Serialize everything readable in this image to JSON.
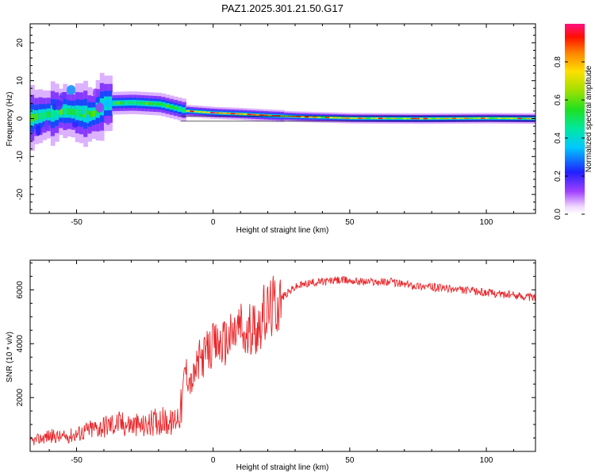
{
  "chart_data": [
    {
      "type": "heatmap",
      "title": "PAZ1.2025.301.21.50.G17",
      "xlabel": "Height of straight line (km)",
      "ylabel": "Frequency (Hz)",
      "xlim": [
        -67,
        118
      ],
      "ylim": [
        -25,
        25
      ],
      "xticks": [
        -50,
        0,
        50,
        100
      ],
      "yticks": [
        -20,
        -10,
        0,
        10,
        20
      ],
      "xtick_labels": [
        "-50",
        "0",
        "50",
        "100"
      ],
      "ytick_labels": [
        "-20",
        "-10",
        "0",
        "10",
        "20"
      ],
      "colorbar": {
        "label": "Normalized spectral amplitude",
        "range": [
          0,
          1
        ],
        "ticks": [
          0.0,
          0.2,
          0.4,
          0.6,
          0.8
        ],
        "tick_labels": [
          "0.0",
          "0.2",
          "0.4",
          "0.6",
          "0.8"
        ],
        "colormap": "rainbow-magenta-low"
      },
      "ridge": [
        {
          "x": -65,
          "f": 0.5
        },
        {
          "x": -55,
          "f": 2.0
        },
        {
          "x": -45,
          "f": 1.0
        },
        {
          "x": -40,
          "f": 4.0
        },
        {
          "x": -30,
          "f": 4.2
        },
        {
          "x": -20,
          "f": 3.8
        },
        {
          "x": -10,
          "f": 2.0
        },
        {
          "x": 0,
          "f": 1.5
        },
        {
          "x": 10,
          "f": 1.2
        },
        {
          "x": 20,
          "f": 0.8
        },
        {
          "x": 30,
          "f": 0.5
        },
        {
          "x": 50,
          "f": 0.1
        },
        {
          "x": 76,
          "f": 0.0
        },
        {
          "x": 100,
          "f": 0.1
        },
        {
          "x": 118,
          "f": 0.0
        }
      ]
    },
    {
      "type": "line",
      "xlabel": "Height of straight line (km)",
      "ylabel": "SNR (10 * v/v)",
      "xlim": [
        -67,
        118
      ],
      "ylim": [
        0,
        7100
      ],
      "xticks": [
        -50,
        0,
        50,
        100
      ],
      "yticks": [
        2000,
        4000,
        6000
      ],
      "xtick_labels": [
        "-50",
        "0",
        "50",
        "100"
      ],
      "ytick_labels": [
        "2000",
        "4000",
        "6000"
      ],
      "series": [
        {
          "name": "SNR",
          "color": "#e8262a",
          "x": [
            -67,
            -60,
            -55,
            -50,
            -45,
            -40,
            -35,
            -30,
            -25,
            -20,
            -15,
            -12,
            -11,
            -10,
            -8,
            -5,
            0,
            5,
            8,
            10,
            12,
            14,
            16,
            18,
            20,
            25,
            30,
            35,
            40,
            45,
            50,
            55,
            60,
            65,
            70,
            75,
            80,
            85,
            90,
            95,
            100,
            105,
            110,
            115,
            118
          ],
          "values": [
            300,
            500,
            450,
            550,
            700,
            800,
            900,
            850,
            800,
            1000,
            900,
            1300,
            1700,
            3000,
            2500,
            3400,
            3900,
            4100,
            4400,
            4700,
            4000,
            4700,
            4600,
            5000,
            5200,
            5700,
            6100,
            6250,
            6300,
            6350,
            6350,
            6300,
            6300,
            6300,
            6200,
            6150,
            6100,
            6050,
            6000,
            5950,
            5900,
            5850,
            5800,
            5750,
            5700
          ]
        }
      ]
    }
  ]
}
